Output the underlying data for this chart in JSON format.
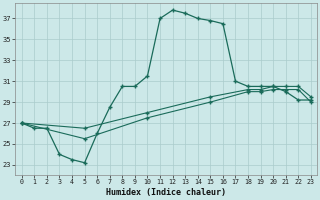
{
  "xlabel": "Humidex (Indice chaleur)",
  "background_color": "#cce8e8",
  "grid_color": "#aacccc",
  "line_color": "#1a6b5a",
  "xlim": [
    -0.5,
    23.5
  ],
  "ylim": [
    22,
    38.5
  ],
  "xticks": [
    0,
    1,
    2,
    3,
    4,
    5,
    6,
    7,
    8,
    9,
    10,
    11,
    12,
    13,
    14,
    15,
    16,
    17,
    18,
    19,
    20,
    21,
    22,
    23
  ],
  "yticks": [
    23,
    25,
    27,
    29,
    31,
    33,
    35,
    37
  ],
  "line1_x": [
    0,
    1,
    2,
    3,
    4,
    5,
    6,
    7,
    8,
    9,
    10,
    11,
    12,
    13,
    14,
    15,
    16,
    17,
    18,
    19,
    20,
    21,
    22,
    23
  ],
  "line1_y": [
    27.0,
    26.5,
    26.5,
    24.0,
    23.5,
    23.2,
    26.0,
    28.5,
    30.5,
    30.5,
    31.5,
    37.0,
    37.8,
    37.5,
    37.0,
    36.8,
    36.5,
    31.0,
    30.5,
    30.5,
    30.5,
    30.0,
    29.2,
    29.2
  ],
  "line2_x": [
    0,
    5,
    10,
    15,
    18,
    19,
    20,
    21,
    22,
    23
  ],
  "line2_y": [
    27.0,
    25.5,
    27.5,
    29.0,
    30.0,
    30.0,
    30.2,
    30.2,
    30.2,
    29.0
  ],
  "line3_x": [
    0,
    5,
    10,
    15,
    18,
    19,
    20,
    21,
    22,
    23
  ],
  "line3_y": [
    27.0,
    26.5,
    28.0,
    29.5,
    30.2,
    30.2,
    30.5,
    30.5,
    30.5,
    29.5
  ]
}
